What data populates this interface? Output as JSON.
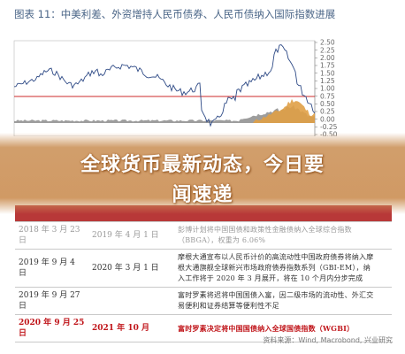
{
  "figure": {
    "title": "图表 11：中美利差、外资增持人民币债券、人民币债纳入国际指数进展"
  },
  "chart": {
    "right_axis_ticks": [
      "2.50",
      "2.25",
      "2.00",
      "1.75",
      "1.50",
      "1.25",
      "1.00",
      "0.75",
      "0.50",
      "0.25",
      "0.00",
      "-0.25",
      "-0.50"
    ],
    "colors": {
      "line_blue": "#2e4a86",
      "threshold_red": "#cc2a2a",
      "area_orange": "#e0a046",
      "area_gray": "#8c8c8c"
    }
  },
  "banner": {
    "line1": "全球货币最新动态，今日要",
    "line2": "闻速递"
  },
  "table": {
    "rows": [
      {
        "announce": "2018 年 3 月 23 日",
        "effective": "2019 年 4 月 1 日",
        "desc": [
          "彭博计划将中国国债和政策性金融债纳入全球综合指数",
          "（BBGA），权重为 6.06%"
        ],
        "style": "faded"
      },
      {
        "announce": "2019 年 9 月 4 日",
        "effective": "2020 年 3 月 1 日",
        "desc": [
          "摩根大通宣布以人民币计价的高流动性中国政府债券将纳入摩",
          "根大通旗舰全球新兴市场政府债券指数系列（GBI-EM），纳",
          "入工作将于 2020 年 3 月展开，将在 10 个月内分步完成"
        ],
        "style": "normal"
      },
      {
        "announce": "2019 年 9 月 27 日",
        "effective": "",
        "desc": [
          "富时罗素将迟将中国国债入富，因二级市场的流动性、外汇交",
          "易便利和证券结算等便利性不足"
        ],
        "style": "normal"
      },
      {
        "announce": "2020 年 9 月 25 日",
        "effective": "2021 年 10 月",
        "desc": [
          "富时罗素决定将中国国债纳入全球国债指数（WGBI）"
        ],
        "style": "hl"
      }
    ]
  },
  "source": {
    "text": "资料来源：Wind, Macrobond, 兴业研究"
  }
}
